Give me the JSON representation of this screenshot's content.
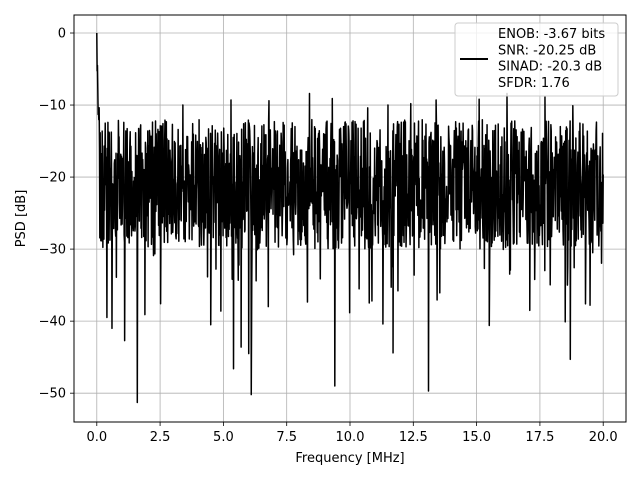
{
  "chart_data": {
    "type": "line",
    "xlabel": "Frequency [MHz]",
    "ylabel": "PSD [dB]",
    "xlim": [
      -0.9,
      20.9
    ],
    "ylim": [
      -54,
      2.5
    ],
    "xticks": [
      0.0,
      2.5,
      5.0,
      7.5,
      10.0,
      12.5,
      15.0,
      17.5,
      20.0
    ],
    "xtick_labels": [
      "0.0",
      "2.5",
      "5.0",
      "7.5",
      "10.0",
      "12.5",
      "15.0",
      "17.5",
      "20.0"
    ],
    "yticks": [
      0,
      -10,
      -20,
      -30,
      -40,
      -50
    ],
    "ytick_labels": [
      "0",
      "−10",
      "−20",
      "−30",
      "−40",
      "−50"
    ],
    "grid": true,
    "legend_position": "top-right",
    "series": [
      {
        "name": "ENOB: -3.67 bits\nSNR: -20.25 dB\nSINAD: -20.3 dB\nSFDR: 1.76",
        "color": "#000000",
        "x_start": 0.0,
        "x_end": 20.0,
        "peak": {
          "x": 0.0,
          "y": 0.0
        },
        "noise_floor_mean_db": -21,
        "noise_upper_envelope_db": -12,
        "noise_lower_envelope_db": -30,
        "deep_notches": [
          {
            "x": 1.6,
            "y": -51.3
          },
          {
            "x": 6.1,
            "y": -50.2
          },
          {
            "x": 13.1,
            "y": -49.7
          },
          {
            "x": 9.4,
            "y": -49.0
          },
          {
            "x": 5.4,
            "y": -46.6
          },
          {
            "x": 18.7,
            "y": -45.3
          },
          {
            "x": 6.0,
            "y": -44.5
          },
          {
            "x": 11.7,
            "y": -44.4
          },
          {
            "x": 5.7,
            "y": -43.6
          },
          {
            "x": 1.1,
            "y": -42.7
          },
          {
            "x": 15.5,
            "y": -40.6
          },
          {
            "x": 4.5,
            "y": -40.5
          },
          {
            "x": 11.3,
            "y": -40.4
          },
          {
            "x": 0.6,
            "y": -41.0
          },
          {
            "x": 18.5,
            "y": -40.1
          },
          {
            "x": 0.4,
            "y": -39.5
          },
          {
            "x": 1.9,
            "y": -39.1
          },
          {
            "x": 4.9,
            "y": -38.6
          },
          {
            "x": 17.1,
            "y": -38.5
          },
          {
            "x": 19.3,
            "y": -37.6
          }
        ],
        "high_peaks": [
          {
            "x": 8.4,
            "y": -8.4
          },
          {
            "x": 16.2,
            "y": -8.4
          },
          {
            "x": 17.7,
            "y": -8.9
          },
          {
            "x": 9.3,
            "y": -9.1
          },
          {
            "x": 13.4,
            "y": -9.3
          },
          {
            "x": 5.3,
            "y": -9.3
          },
          {
            "x": 15.1,
            "y": -9.2
          },
          {
            "x": 6.8,
            "y": -9.4
          },
          {
            "x": 12.4,
            "y": -9.8
          },
          {
            "x": 3.4,
            "y": -10.0
          },
          {
            "x": 18.8,
            "y": -10.1
          },
          {
            "x": 10.7,
            "y": -10.4
          },
          {
            "x": 11.5,
            "y": -10.0
          }
        ]
      }
    ]
  }
}
